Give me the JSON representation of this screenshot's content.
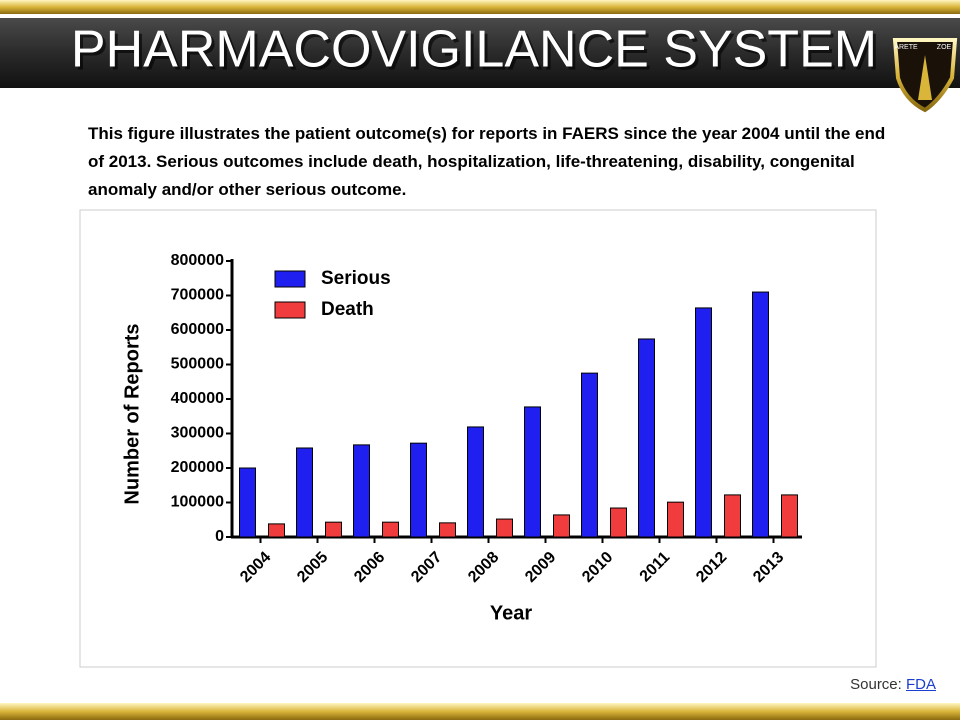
{
  "slide_title": "PHARMACOVIGILANCE SYSTEM",
  "logo": {
    "left": "ARETE",
    "right": "ZOE"
  },
  "description": "This figure illustrates the patient outcome(s) for reports in FAERS since the year 2004 until the end of 2013. Serious outcomes include death, hospitalization, life-threatening, disability, congenital anomaly and/or other serious outcome.",
  "source_label": "Source:",
  "source_link": "FDA",
  "chart_data": {
    "type": "bar",
    "x_label": "Year",
    "y_label": "Number of Reports",
    "categories": [
      "2004",
      "2005",
      "2006",
      "2007",
      "2008",
      "2009",
      "2010",
      "2011",
      "2012",
      "2013"
    ],
    "series": [
      {
        "name": "Serious",
        "color": "#1f1ff0",
        "values": [
          200000,
          258000,
          267000,
          272000,
          319000,
          377000,
          475000,
          574000,
          664000,
          710000
        ]
      },
      {
        "name": "Death",
        "color": "#f03c3c",
        "values": [
          38000,
          43000,
          43000,
          41000,
          52000,
          64000,
          84000,
          101000,
          122000,
          122000
        ]
      }
    ],
    "ylim": [
      0,
      800000
    ],
    "yticks": [
      0,
      100000,
      200000,
      300000,
      400000,
      500000,
      600000,
      700000,
      800000
    ],
    "legend": "upper left"
  }
}
